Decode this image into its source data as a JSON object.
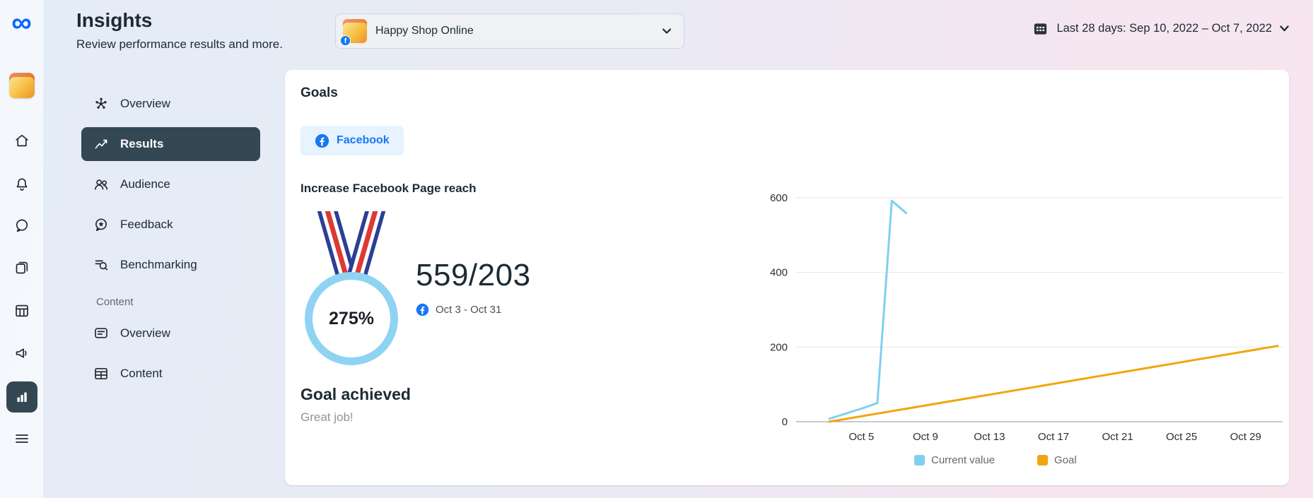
{
  "icons": {
    "meta_logo_glyph": "∞"
  },
  "colors": {
    "accent_blue": "#1877F2",
    "tab_bg": "#E7F3FF",
    "active_nav": "#344854",
    "progress_ring": "#8FD3F3",
    "current_value_line": "#7FD0F0",
    "goal_line": "#F2A60D"
  },
  "sidebar": {
    "title": "Insights",
    "subtitle": "Review performance results and more.",
    "items": [
      {
        "label": "Overview"
      },
      {
        "label": "Results"
      },
      {
        "label": "Audience"
      },
      {
        "label": "Feedback"
      },
      {
        "label": "Benchmarking"
      }
    ],
    "section": "Content",
    "content_items": [
      {
        "label": "Overview"
      },
      {
        "label": "Content"
      }
    ]
  },
  "topbar": {
    "business_name": "Happy Shop Online",
    "date_range_label": "Last 28 days: Sep 10, 2022 – Oct 7, 2022"
  },
  "goals": {
    "title": "Goals",
    "platform_tab": "Facebook",
    "goal_name": "Increase Facebook Page reach",
    "progress_percent": "275%",
    "score": "559/203",
    "period": "Oct 3 - Oct 31",
    "status_title": "Goal achieved",
    "status_message": "Great job!"
  },
  "chart_data": {
    "type": "line",
    "title": "Increase Facebook Page reach",
    "x_ticks": [
      "Oct 5",
      "Oct 9",
      "Oct 13",
      "Oct 17",
      "Oct 21",
      "Oct 25",
      "Oct 29"
    ],
    "x_tick_days": [
      2,
      6,
      10,
      14,
      18,
      22,
      26
    ],
    "x_domain": [
      0,
      28
    ],
    "y_ticks": [
      0,
      200,
      400,
      600
    ],
    "ylim": [
      0,
      600
    ],
    "grid": true,
    "legend_position": "bottom",
    "series": [
      {
        "name": "Current value",
        "color": "#7FD0F0",
        "points": [
          [
            0,
            8
          ],
          [
            2,
            35
          ],
          [
            3,
            50
          ],
          [
            3.9,
            592
          ],
          [
            4.8,
            559
          ]
        ]
      },
      {
        "name": "Goal",
        "color": "#F2A60D",
        "points": [
          [
            0,
            0
          ],
          [
            28,
            203
          ]
        ]
      }
    ]
  }
}
